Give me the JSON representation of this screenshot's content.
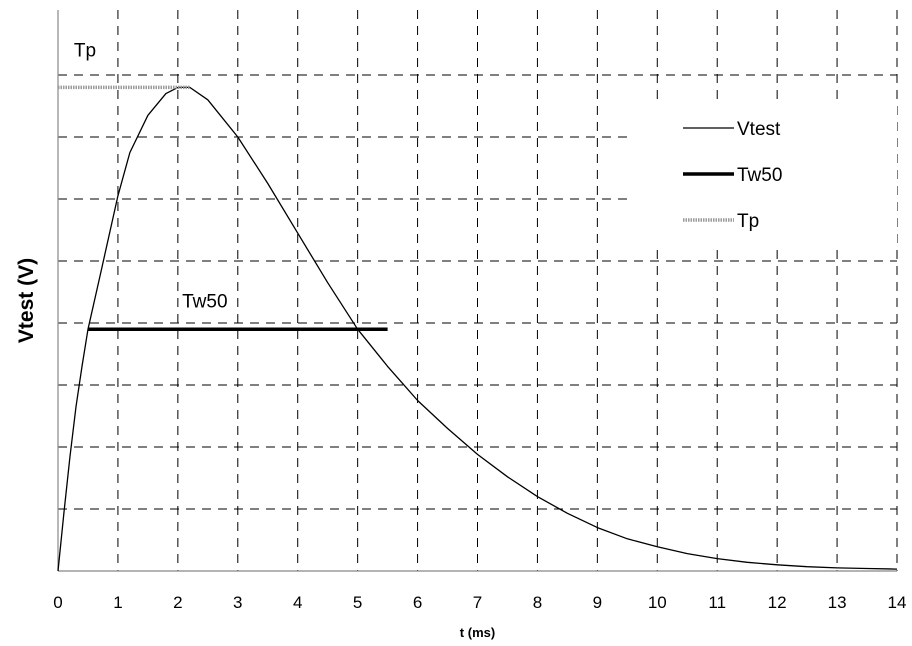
{
  "chart_data": {
    "type": "line",
    "xlabel": "t (ms)",
    "ylabel": "Vtest (V)",
    "xlim": [
      0,
      14
    ],
    "ylim": [
      0,
      8
    ],
    "x_ticks": [
      0,
      1,
      2,
      3,
      4,
      5,
      6,
      7,
      8,
      9,
      10,
      11,
      12,
      13,
      14
    ],
    "y_gridlines": [
      1,
      2,
      3,
      4,
      5,
      6,
      7,
      8
    ],
    "grid": true,
    "legend_position": "top-right",
    "series": [
      {
        "name": "Vtest",
        "style": "thin-solid",
        "color": "#000000",
        "x": [
          0,
          0.1,
          0.2,
          0.3,
          0.4,
          0.5,
          0.7,
          1.0,
          1.2,
          1.5,
          1.8,
          2.0,
          2.2,
          2.5,
          3.0,
          3.5,
          4.0,
          4.5,
          5.0,
          5.5,
          6.0,
          6.5,
          7.0,
          7.5,
          8.0,
          8.5,
          9.0,
          9.5,
          10.0,
          10.5,
          11.0,
          11.5,
          12.0,
          12.5,
          13.0,
          13.5,
          14.0
        ],
        "y": [
          0,
          0.95,
          1.85,
          2.65,
          3.3,
          3.9,
          4.75,
          6.05,
          6.75,
          7.35,
          7.7,
          7.8,
          7.8,
          7.6,
          7.0,
          6.25,
          5.45,
          4.65,
          3.9,
          3.3,
          2.75,
          2.3,
          1.88,
          1.52,
          1.2,
          0.93,
          0.7,
          0.52,
          0.39,
          0.28,
          0.2,
          0.14,
          0.1,
          0.07,
          0.05,
          0.04,
          0.03
        ]
      },
      {
        "name": "Tw50",
        "style": "thick-solid",
        "color": "#000000",
        "x": [
          0.5,
          5.5
        ],
        "y": [
          3.9,
          3.9
        ]
      },
      {
        "name": "Tp",
        "style": "hatched-gray",
        "color": "#9a9a9a",
        "x": [
          0,
          2.2
        ],
        "y": [
          7.8,
          7.8
        ]
      }
    ],
    "annotations": [
      {
        "text": "Tw50",
        "x": 2.45,
        "y": 4.25
      },
      {
        "text": "Tp",
        "x": 0.45,
        "y": 8.3
      }
    ]
  }
}
